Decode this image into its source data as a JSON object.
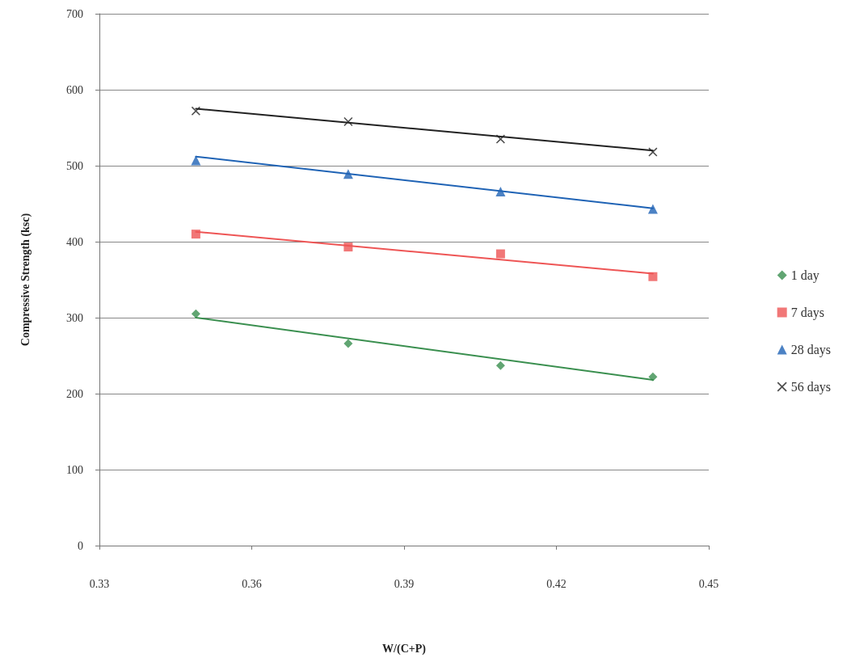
{
  "chart_data": {
    "type": "scatter",
    "xlabel": "W/(C+P)",
    "ylabel": "Compressive Strength (ksc)",
    "xlim": [
      0.33,
      0.45
    ],
    "xticks": [
      0.33,
      0.36,
      0.39,
      0.42,
      0.45
    ],
    "ylim": [
      0,
      700
    ],
    "yticks": [
      0,
      100,
      200,
      300,
      400,
      500,
      600,
      700
    ],
    "grid": "y",
    "legend": "right",
    "series": [
      {
        "name": "1 day",
        "color": "#3a8f4f",
        "marker": "diamond",
        "x": [
          0.349,
          0.379,
          0.409,
          0.439
        ],
        "values": [
          305,
          266,
          237,
          222
        ]
      },
      {
        "name": "7 days",
        "color": "#ee5555",
        "marker": "square",
        "x": [
          0.349,
          0.379,
          0.409,
          0.439
        ],
        "values": [
          410,
          393,
          384,
          354
        ]
      },
      {
        "name": "28 days",
        "color": "#1f63b5",
        "marker": "triangle",
        "x": [
          0.349,
          0.379,
          0.409,
          0.439
        ],
        "values": [
          507,
          489,
          466,
          443
        ]
      },
      {
        "name": "56 days",
        "color": "#222222",
        "marker": "cross",
        "x": [
          0.349,
          0.379,
          0.409,
          0.439
        ],
        "values": [
          572,
          558,
          535,
          518
        ]
      },
      {
        "type": "line",
        "color": "#3a8f4f",
        "marker": "none",
        "x": [
          0.349,
          0.439
        ],
        "values": [
          300,
          218
        ]
      },
      {
        "type": "line",
        "color": "#ee5555",
        "marker": "none",
        "x": [
          0.349,
          0.439
        ],
        "values": [
          413,
          358
        ]
      },
      {
        "type": "line",
        "color": "#1f63b5",
        "marker": "none",
        "x": [
          0.349,
          0.439
        ],
        "values": [
          512,
          444
        ]
      },
      {
        "type": "line",
        "color": "#222222",
        "marker": "none",
        "x": [
          0.349,
          0.439
        ],
        "values": [
          575,
          520
        ]
      }
    ]
  }
}
